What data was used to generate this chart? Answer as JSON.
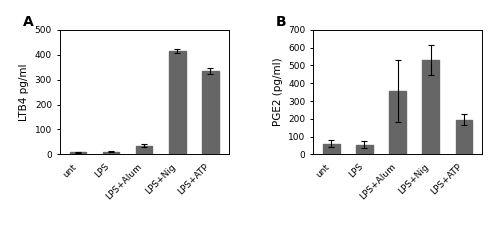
{
  "panel_A": {
    "label": "A",
    "categories": [
      "unt",
      "LPS",
      "LPS+Alum",
      "LPS+Nig",
      "LPS+ATP"
    ],
    "values": [
      8,
      10,
      35,
      415,
      335
    ],
    "errors": [
      2,
      2,
      5,
      8,
      12
    ],
    "ylabel": "LTB4 pg/ml",
    "ylim": [
      0,
      500
    ],
    "yticks": [
      0,
      100,
      200,
      300,
      400,
      500
    ]
  },
  "panel_B": {
    "label": "B",
    "categories": [
      "unt",
      "LPS",
      "LPS+Alum",
      "LPS+Nig",
      "LPS+ATP"
    ],
    "values": [
      60,
      55,
      355,
      530,
      195
    ],
    "errors": [
      20,
      20,
      175,
      85,
      30
    ],
    "ylabel": "PGE2 (pg/ml)",
    "ylim": [
      0,
      700
    ],
    "yticks": [
      0,
      100,
      200,
      300,
      400,
      500,
      600,
      700
    ]
  },
  "bar_color": "#666666",
  "bar_width": 0.5,
  "tick_label_fontsize": 6.5,
  "axis_label_fontsize": 7.5,
  "panel_label_fontsize": 10,
  "background_color": "#ffffff"
}
